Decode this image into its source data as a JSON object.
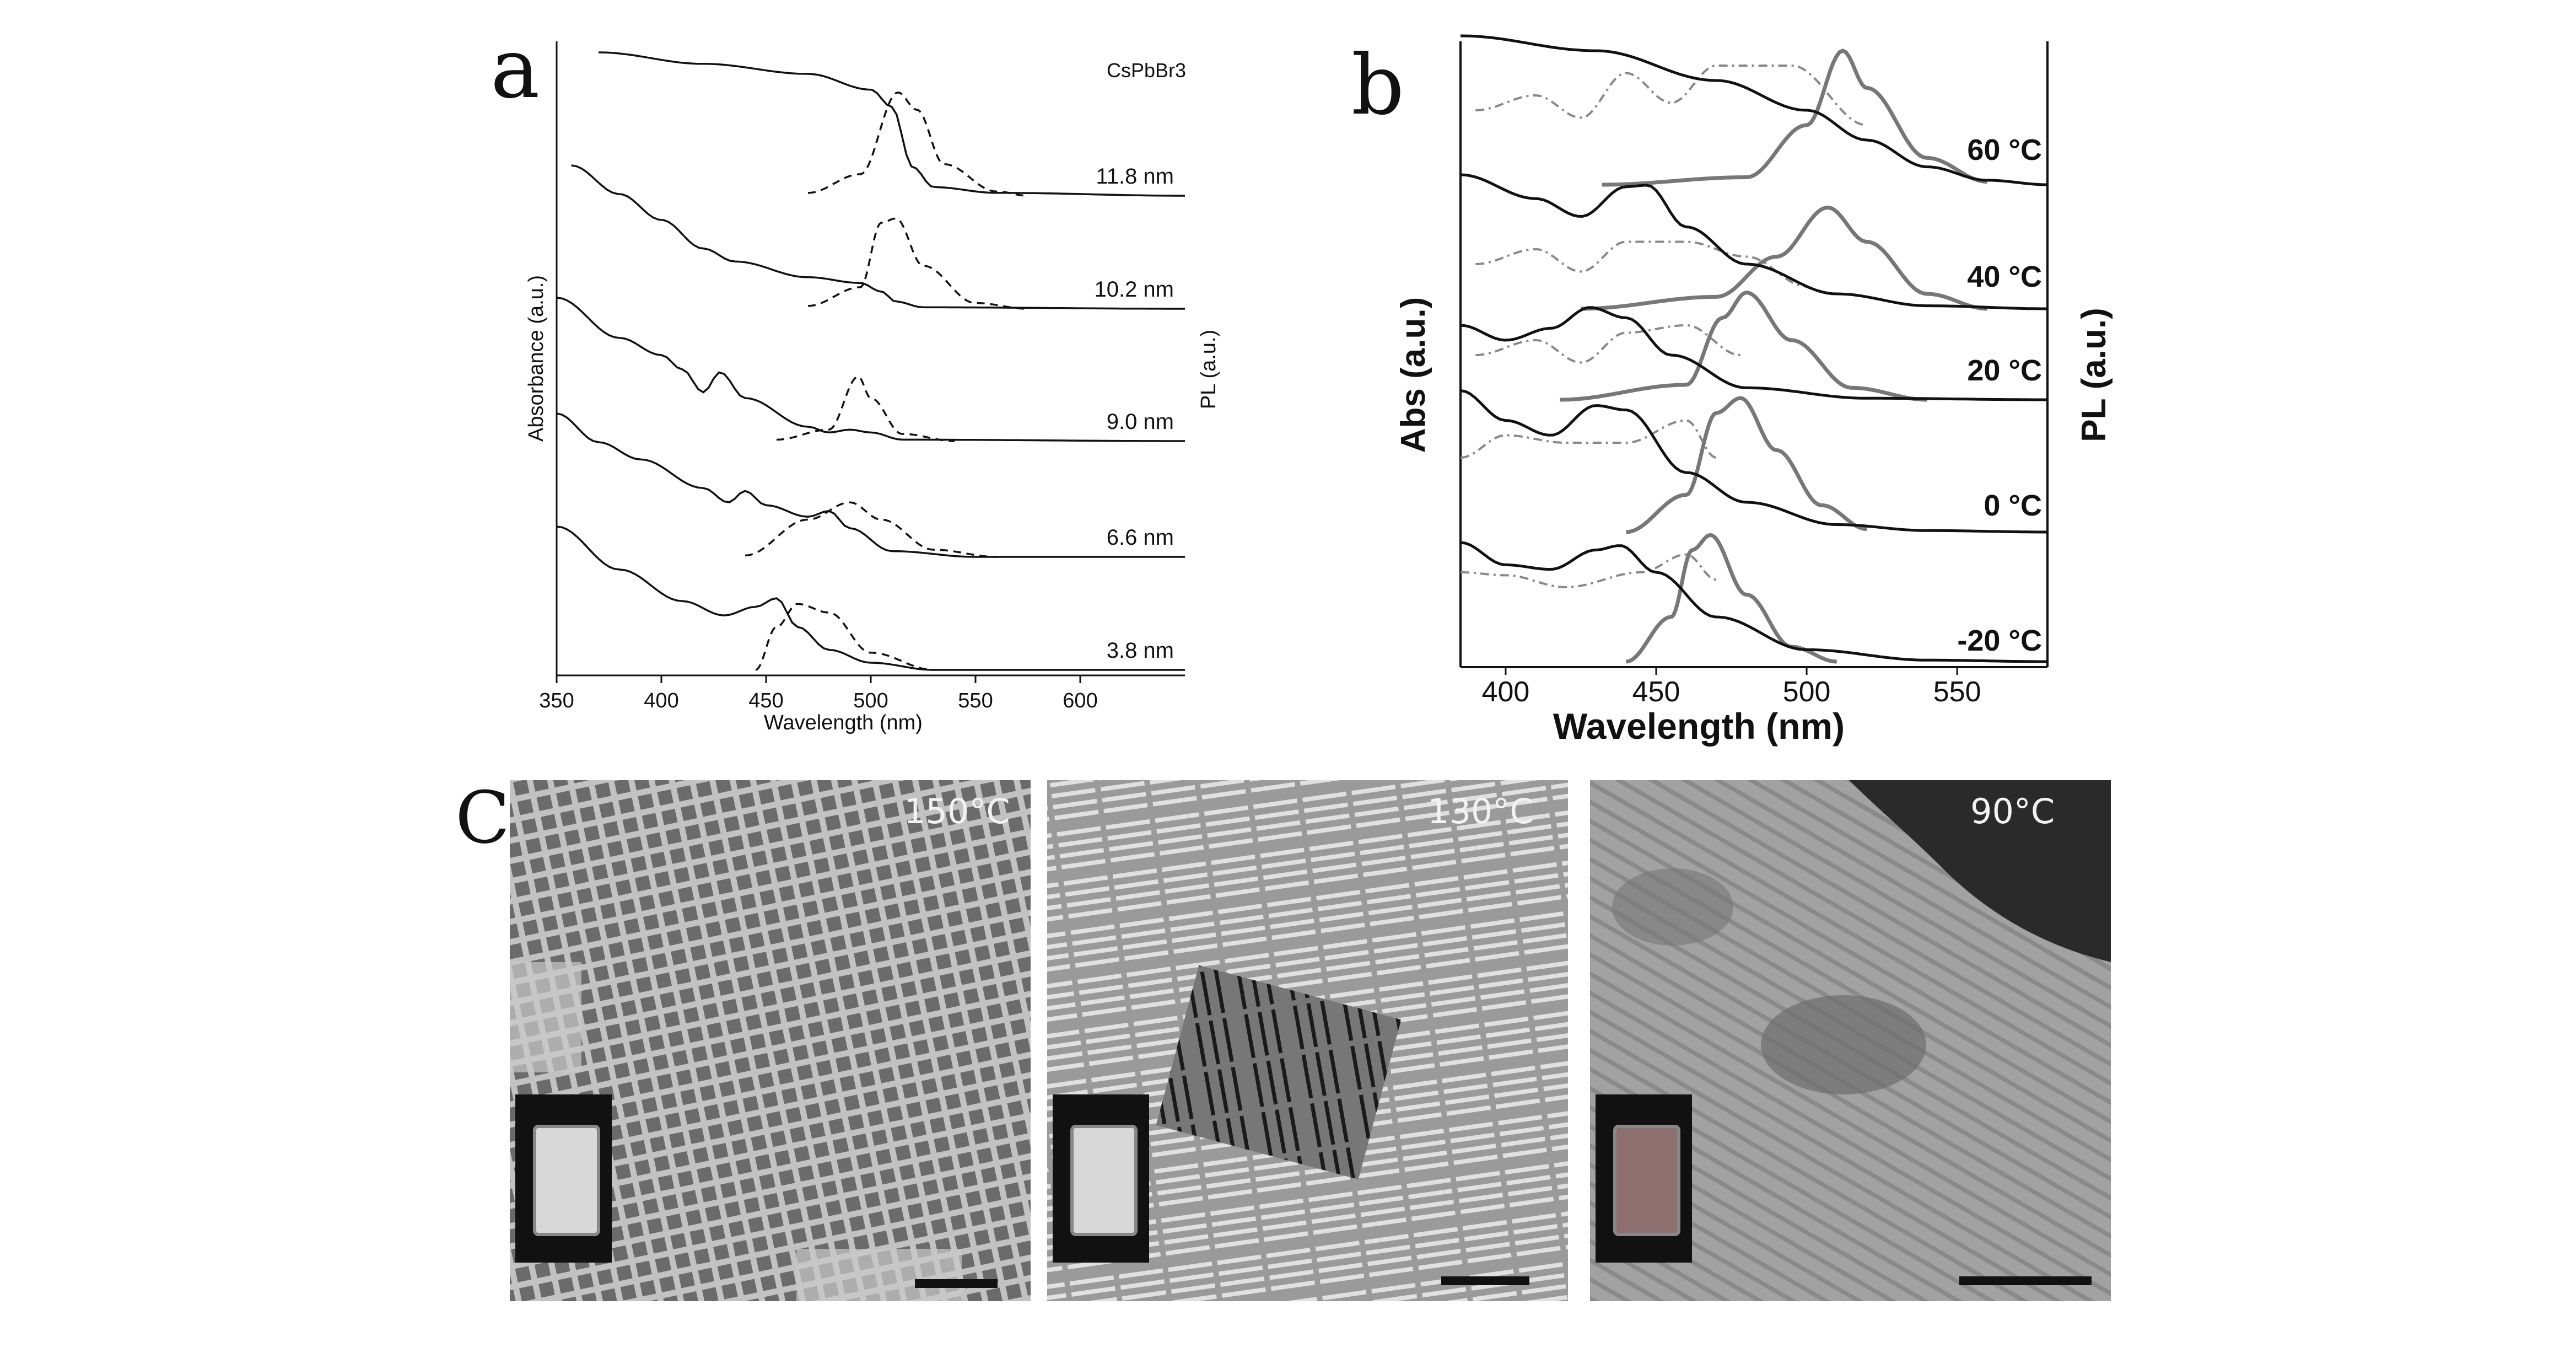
{
  "panels": {
    "a": {
      "label": "a"
    },
    "b": {
      "label": "b"
    },
    "c": {
      "label": "C"
    }
  },
  "chart_data": [
    {
      "panel": "a",
      "type": "line",
      "xlabel": "Wavelength (nm)",
      "ylabel_left": "Absorbance (a.u.)",
      "ylabel_right": "PL (a.u.)",
      "annotation": "CsPbBr3",
      "xlim": [
        350,
        650
      ],
      "xticks": [
        350,
        400,
        450,
        500,
        550,
        600
      ],
      "series": [
        {
          "name": "11.8 nm",
          "abs": [
            [
              370,
              1.0
            ],
            [
              420,
              0.92
            ],
            [
              470,
              0.85
            ],
            [
              500,
              0.74
            ],
            [
              510,
              0.62
            ],
            [
              520,
              0.2
            ],
            [
              530,
              0.06
            ],
            [
              560,
              0.02
            ],
            [
              650,
              0.0
            ]
          ],
          "pl": [
            [
              470,
              0.02
            ],
            [
              495,
              0.15
            ],
            [
              513,
              0.72
            ],
            [
              522,
              0.6
            ],
            [
              535,
              0.22
            ],
            [
              560,
              0.03
            ],
            [
              575,
              0.0
            ]
          ]
        },
        {
          "name": "10.2 nm",
          "abs": [
            [
              357,
              1.0
            ],
            [
              380,
              0.8
            ],
            [
              400,
              0.62
            ],
            [
              420,
              0.42
            ],
            [
              435,
              0.33
            ],
            [
              470,
              0.22
            ],
            [
              495,
              0.18
            ],
            [
              505,
              0.12
            ],
            [
              512,
              0.05
            ],
            [
              525,
              0.01
            ],
            [
              650,
              0.0
            ]
          ],
          "pl": [
            [
              470,
              0.02
            ],
            [
              495,
              0.15
            ],
            [
              505,
              0.6
            ],
            [
              512,
              0.63
            ],
            [
              525,
              0.3
            ],
            [
              550,
              0.04
            ],
            [
              575,
              0.0
            ]
          ]
        },
        {
          "name": "9.0 nm",
          "abs": [
            [
              350,
              1.0
            ],
            [
              380,
              0.72
            ],
            [
              400,
              0.6
            ],
            [
              410,
              0.5
            ],
            [
              420,
              0.34
            ],
            [
              428,
              0.48
            ],
            [
              440,
              0.3
            ],
            [
              470,
              0.1
            ],
            [
              480,
              0.06
            ],
            [
              490,
              0.08
            ],
            [
              500,
              0.06
            ],
            [
              515,
              0.01
            ],
            [
              650,
              0.0
            ]
          ],
          "pl": [
            [
              455,
              0.01
            ],
            [
              480,
              0.08
            ],
            [
              494,
              0.45
            ],
            [
              500,
              0.3
            ],
            [
              515,
              0.05
            ],
            [
              540,
              0.0
            ]
          ]
        },
        {
          "name": "6.6 nm",
          "abs": [
            [
              350,
              1.0
            ],
            [
              370,
              0.8
            ],
            [
              390,
              0.68
            ],
            [
              420,
              0.48
            ],
            [
              432,
              0.38
            ],
            [
              440,
              0.46
            ],
            [
              450,
              0.36
            ],
            [
              470,
              0.28
            ],
            [
              480,
              0.32
            ],
            [
              490,
              0.2
            ],
            [
              510,
              0.04
            ],
            [
              550,
              0.0
            ],
            [
              650,
              0.0
            ]
          ],
          "pl": [
            [
              440,
              0.01
            ],
            [
              470,
              0.26
            ],
            [
              490,
              0.38
            ],
            [
              505,
              0.26
            ],
            [
              530,
              0.05
            ],
            [
              560,
              0.0
            ]
          ]
        },
        {
          "name": "3.8 nm",
          "abs": [
            [
              350,
              1.0
            ],
            [
              380,
              0.7
            ],
            [
              410,
              0.48
            ],
            [
              430,
              0.38
            ],
            [
              445,
              0.44
            ],
            [
              455,
              0.5
            ],
            [
              465,
              0.3
            ],
            [
              480,
              0.14
            ],
            [
              500,
              0.05
            ],
            [
              530,
              0.0
            ],
            [
              650,
              0.0
            ]
          ],
          "pl": [
            [
              445,
              0.0
            ],
            [
              455,
              0.3
            ],
            [
              465,
              0.46
            ],
            [
              480,
              0.4
            ],
            [
              500,
              0.12
            ],
            [
              530,
              0.0
            ]
          ]
        }
      ]
    },
    {
      "panel": "b",
      "type": "line",
      "xlabel": "Wavelength (nm)",
      "ylabel_left": "Abs (a.u.)",
      "ylabel_right": "PL (a.u.)",
      "xlim": [
        385,
        580
      ],
      "xticks": [
        400,
        450,
        500,
        550
      ],
      "series": [
        {
          "name": "60 °C",
          "abs": [
            [
              385,
              1.0
            ],
            [
              430,
              0.9
            ],
            [
              470,
              0.7
            ],
            [
              500,
              0.5
            ],
            [
              520,
              0.3
            ],
            [
              540,
              0.12
            ],
            [
              560,
              0.03
            ],
            [
              580,
              0.0
            ]
          ],
          "pl": [
            [
              432,
              0.0
            ],
            [
              480,
              0.05
            ],
            [
              500,
              0.4
            ],
            [
              512,
              0.9
            ],
            [
              520,
              0.65
            ],
            [
              540,
              0.18
            ],
            [
              560,
              0.02
            ]
          ],
          "pl_dash": [
            [
              390,
              0.5
            ],
            [
              410,
              0.6
            ],
            [
              425,
              0.45
            ],
            [
              440,
              0.75
            ],
            [
              455,
              0.55
            ],
            [
              470,
              0.8
            ],
            [
              495,
              0.8
            ],
            [
              520,
              0.4
            ]
          ]
        },
        {
          "name": "40 °C",
          "abs": [
            [
              385,
              0.9
            ],
            [
              410,
              0.74
            ],
            [
              425,
              0.62
            ],
            [
              440,
              0.82
            ],
            [
              447,
              0.83
            ],
            [
              460,
              0.55
            ],
            [
              480,
              0.3
            ],
            [
              510,
              0.1
            ],
            [
              540,
              0.02
            ],
            [
              580,
              0.0
            ]
          ],
          "pl": [
            [
              425,
              0.0
            ],
            [
              470,
              0.08
            ],
            [
              490,
              0.35
            ],
            [
              507,
              0.68
            ],
            [
              520,
              0.45
            ],
            [
              540,
              0.1
            ],
            [
              560,
              0.0
            ]
          ],
          "pl_dash": [
            [
              390,
              0.3
            ],
            [
              410,
              0.4
            ],
            [
              425,
              0.25
            ],
            [
              440,
              0.45
            ],
            [
              460,
              0.45
            ],
            [
              480,
              0.35
            ],
            [
              500,
              0.15
            ]
          ]
        },
        {
          "name": "20 °C",
          "abs": [
            [
              385,
              0.5
            ],
            [
              400,
              0.4
            ],
            [
              415,
              0.48
            ],
            [
              428,
              0.62
            ],
            [
              440,
              0.55
            ],
            [
              455,
              0.3
            ],
            [
              480,
              0.08
            ],
            [
              520,
              0.01
            ],
            [
              580,
              0.0
            ]
          ],
          "pl": [
            [
              418,
              0.0
            ],
            [
              460,
              0.1
            ],
            [
              472,
              0.55
            ],
            [
              480,
              0.72
            ],
            [
              495,
              0.4
            ],
            [
              515,
              0.08
            ],
            [
              540,
              0.0
            ]
          ],
          "pl_dash": [
            [
              390,
              0.3
            ],
            [
              410,
              0.4
            ],
            [
              425,
              0.25
            ],
            [
              440,
              0.45
            ],
            [
              460,
              0.5
            ],
            [
              478,
              0.3
            ]
          ]
        },
        {
          "name": "0 °C",
          "abs": [
            [
              385,
              0.95
            ],
            [
              400,
              0.75
            ],
            [
              415,
              0.65
            ],
            [
              430,
              0.85
            ],
            [
              440,
              0.82
            ],
            [
              460,
              0.4
            ],
            [
              480,
              0.2
            ],
            [
              510,
              0.05
            ],
            [
              540,
              0.01
            ],
            [
              580,
              0.0
            ]
          ],
          "pl": [
            [
              440,
              0.0
            ],
            [
              460,
              0.25
            ],
            [
              470,
              0.8
            ],
            [
              478,
              0.9
            ],
            [
              490,
              0.55
            ],
            [
              505,
              0.18
            ],
            [
              520,
              0.02
            ]
          ],
          "pl_dash": [
            [
              385,
              0.5
            ],
            [
              400,
              0.65
            ],
            [
              420,
              0.6
            ],
            [
              440,
              0.6
            ],
            [
              460,
              0.75
            ],
            [
              470,
              0.5
            ]
          ]
        },
        {
          "name": "-20 °C",
          "abs": [
            [
              385,
              0.8
            ],
            [
              400,
              0.65
            ],
            [
              415,
              0.62
            ],
            [
              430,
              0.75
            ],
            [
              438,
              0.78
            ],
            [
              450,
              0.6
            ],
            [
              470,
              0.3
            ],
            [
              500,
              0.08
            ],
            [
              540,
              0.01
            ],
            [
              580,
              0.0
            ]
          ],
          "pl": [
            [
              440,
              0.0
            ],
            [
              455,
              0.3
            ],
            [
              462,
              0.75
            ],
            [
              468,
              0.85
            ],
            [
              480,
              0.45
            ],
            [
              495,
              0.1
            ],
            [
              510,
              0.0
            ]
          ],
          "pl_dash": [
            [
              385,
              0.6
            ],
            [
              400,
              0.58
            ],
            [
              420,
              0.5
            ],
            [
              445,
              0.6
            ],
            [
              460,
              0.72
            ],
            [
              470,
              0.55
            ]
          ]
        }
      ]
    }
  ],
  "tem": [
    {
      "label": "150°C"
    },
    {
      "label": "130°C"
    },
    {
      "label": "90°C"
    }
  ]
}
